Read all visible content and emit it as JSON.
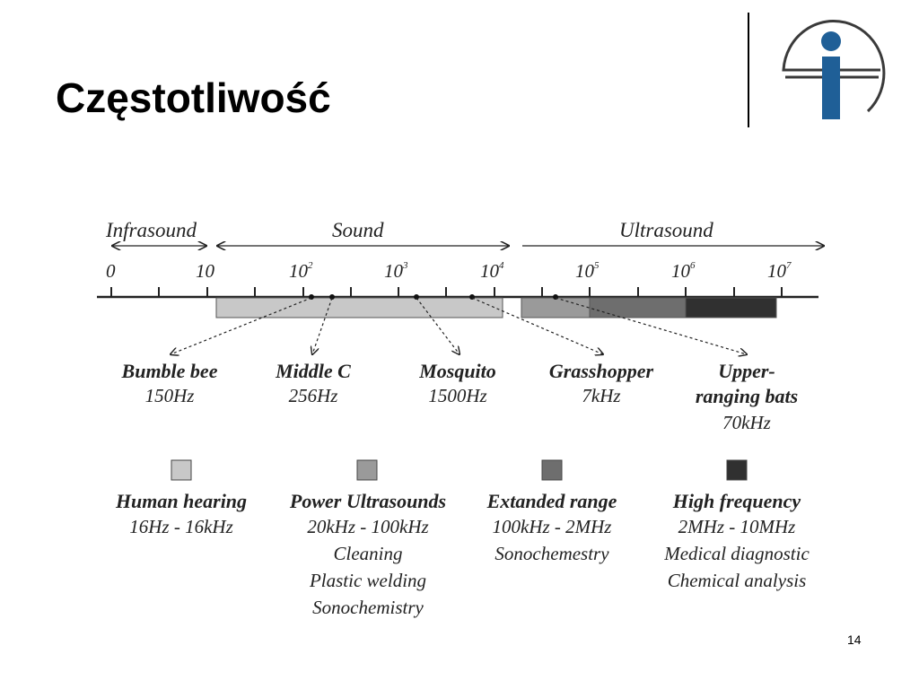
{
  "slide": {
    "title": "Częstotliwość",
    "page_number": "14",
    "logo_icon": "ei-logo-icon"
  },
  "diagram": {
    "ranges": {
      "infrasound": "Infrasound",
      "sound": "Sound",
      "ultrasound": "Ultrasound"
    },
    "scale": [
      {
        "base": "0",
        "exp": ""
      },
      {
        "base": "10",
        "exp": ""
      },
      {
        "base": "10",
        "exp": "2"
      },
      {
        "base": "10",
        "exp": "3"
      },
      {
        "base": "10",
        "exp": "4"
      },
      {
        "base": "10",
        "exp": "5"
      },
      {
        "base": "10",
        "exp": "6"
      },
      {
        "base": "10",
        "exp": "7"
      }
    ],
    "examples": [
      {
        "name": "Bumble bee",
        "freq": "150Hz"
      },
      {
        "name": "Middle C",
        "freq": "256Hz"
      },
      {
        "name": "Mosquito",
        "freq": "1500Hz"
      },
      {
        "name": "Grasshopper",
        "freq": "7kHz"
      },
      {
        "name_line1": "Upper-",
        "name_line2": "ranging bats",
        "freq": "70kHz"
      }
    ],
    "legend": [
      {
        "title": "Human hearing",
        "lines": [
          "16Hz - 16kHz"
        ],
        "color": "#c8c8c8"
      },
      {
        "title": "Power Ultrasounds",
        "lines": [
          "20kHz - 100kHz",
          "Cleaning",
          "Plastic welding",
          "Sonochemistry"
        ],
        "color": "#9a9a9a"
      },
      {
        "title": "Extanded range",
        "lines": [
          "100kHz - 2MHz",
          "Sonochemestry"
        ],
        "color": "#6e6e6e"
      },
      {
        "title": "High frequency",
        "lines": [
          "2MHz - 10MHz",
          "Medical diagnostic",
          "Chemical analysis"
        ],
        "color": "#303030"
      }
    ]
  }
}
